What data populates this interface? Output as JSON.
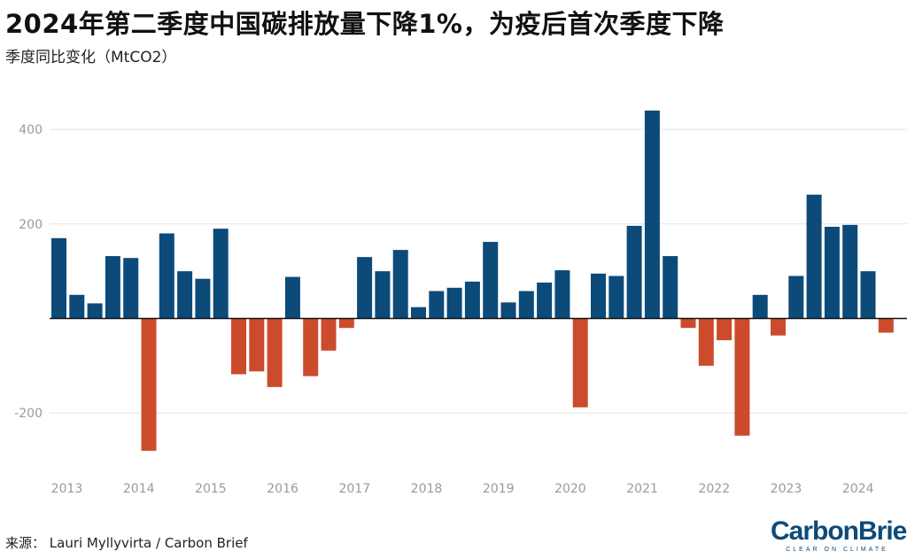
{
  "header": {
    "title": "2024年第二季度中国碳排放量下降1%，为疫后首次季度下降",
    "subtitle": "季度同比变化（MtCO2）"
  },
  "footer": {
    "source": "来源： Lauri Myllyvirta / Carbon Brief"
  },
  "logo": {
    "name": "CarbonBrief",
    "tagline": "CLEAR ON CLIMATE"
  },
  "colors": {
    "positive": "#0c4a7a",
    "negative": "#cc4b2c",
    "grid": "#e3e3e3",
    "axis_text": "#9a9a9a",
    "zero_line": "#111111"
  },
  "chart_data": {
    "type": "bar",
    "title": "2024年第二季度中国碳排放量下降1%，为疫后首次季度下降",
    "ylabel": "季度同比变化（MtCO2）",
    "ylim": [
      -330,
      440
    ],
    "yticks": [
      -200,
      200,
      400
    ],
    "grid": true,
    "years": [
      "2013",
      "2014",
      "2015",
      "2016",
      "2017",
      "2018",
      "2019",
      "2020",
      "2021",
      "2022",
      "2023",
      "2024"
    ],
    "quarters_per_year": 4,
    "values": [
      170,
      50,
      32,
      132,
      128,
      -280,
      180,
      100,
      84,
      190,
      -118,
      -112,
      -145,
      88,
      -122,
      -68,
      -20,
      130,
      100,
      145,
      24,
      58,
      65,
      78,
      162,
      34,
      58,
      76,
      102,
      -188,
      95,
      90,
      196,
      440,
      132,
      -20,
      -100,
      -46,
      -248,
      50,
      -36,
      90,
      262,
      194,
      198,
      100,
      -30
    ]
  }
}
